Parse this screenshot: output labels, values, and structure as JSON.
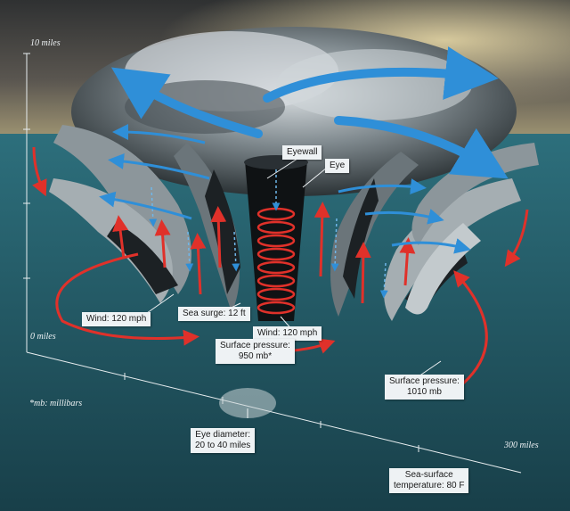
{
  "axis": {
    "vertical_top": "10 miles",
    "vertical_bottom": "0 miles",
    "horizontal_end": "300 miles"
  },
  "labels": {
    "eyewall": "Eyewall",
    "eye": "Eye",
    "sea_surge": "Sea surge: 12 ft",
    "wind_left": "Wind: 120 mph",
    "wind_center": "Wind: 120 mph",
    "surface_pressure_center_line1": "Surface pressure:",
    "surface_pressure_center_line2": "950 mb*",
    "surface_pressure_edge_line1": "Surface pressure:",
    "surface_pressure_edge_line2": "1010 mb",
    "eye_diameter_line1": "Eye diameter:",
    "eye_diameter_line2": "20 to 40 miles",
    "sea_temp_line1": "Sea-surface",
    "sea_temp_line2": "temperature: 80 F"
  },
  "footnote": "*mb: millibars",
  "colors": {
    "sky_top": "#3a3a3a",
    "sky_glow": "#c9b88a",
    "sea": "#2c6b78",
    "sea_deep": "#1a4a55",
    "cloud": "#9aa4aa",
    "cloud_dark": "#1e2326",
    "warm_arrow": "#e0312a",
    "cool_arrow": "#2f8fd8"
  }
}
